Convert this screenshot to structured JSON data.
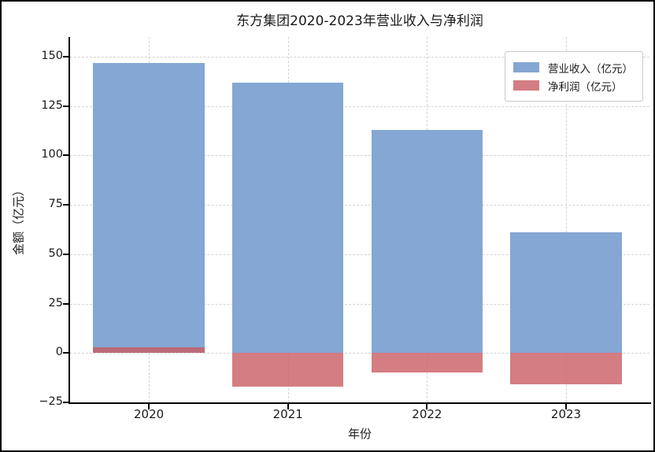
{
  "chart_data": {
    "type": "bar",
    "title": "东方集团2020-2023年营业收入与净利润",
    "xlabel": "年份",
    "ylabel": "金额（亿元）",
    "categories": [
      "2020",
      "2021",
      "2022",
      "2023"
    ],
    "series": [
      {
        "name": "营业收入（亿元）",
        "color": "#84a7d3",
        "values": [
          147,
          137,
          113,
          61
        ]
      },
      {
        "name": "净利润（亿元）",
        "color": "rgba(201,93,99,0.8)",
        "values": [
          3,
          -17,
          -10,
          -16
        ]
      }
    ],
    "ylim": [
      -25,
      160
    ],
    "yticks": [
      150,
      125,
      100,
      75,
      50,
      25,
      0,
      -25
    ],
    "grid": {
      "axes": "both",
      "style": "dashed",
      "color": "#d4d4d4"
    },
    "legend_position": "upper-right",
    "bars_overlap": true,
    "axis_color": "#000000",
    "background": "#ffffff"
  }
}
